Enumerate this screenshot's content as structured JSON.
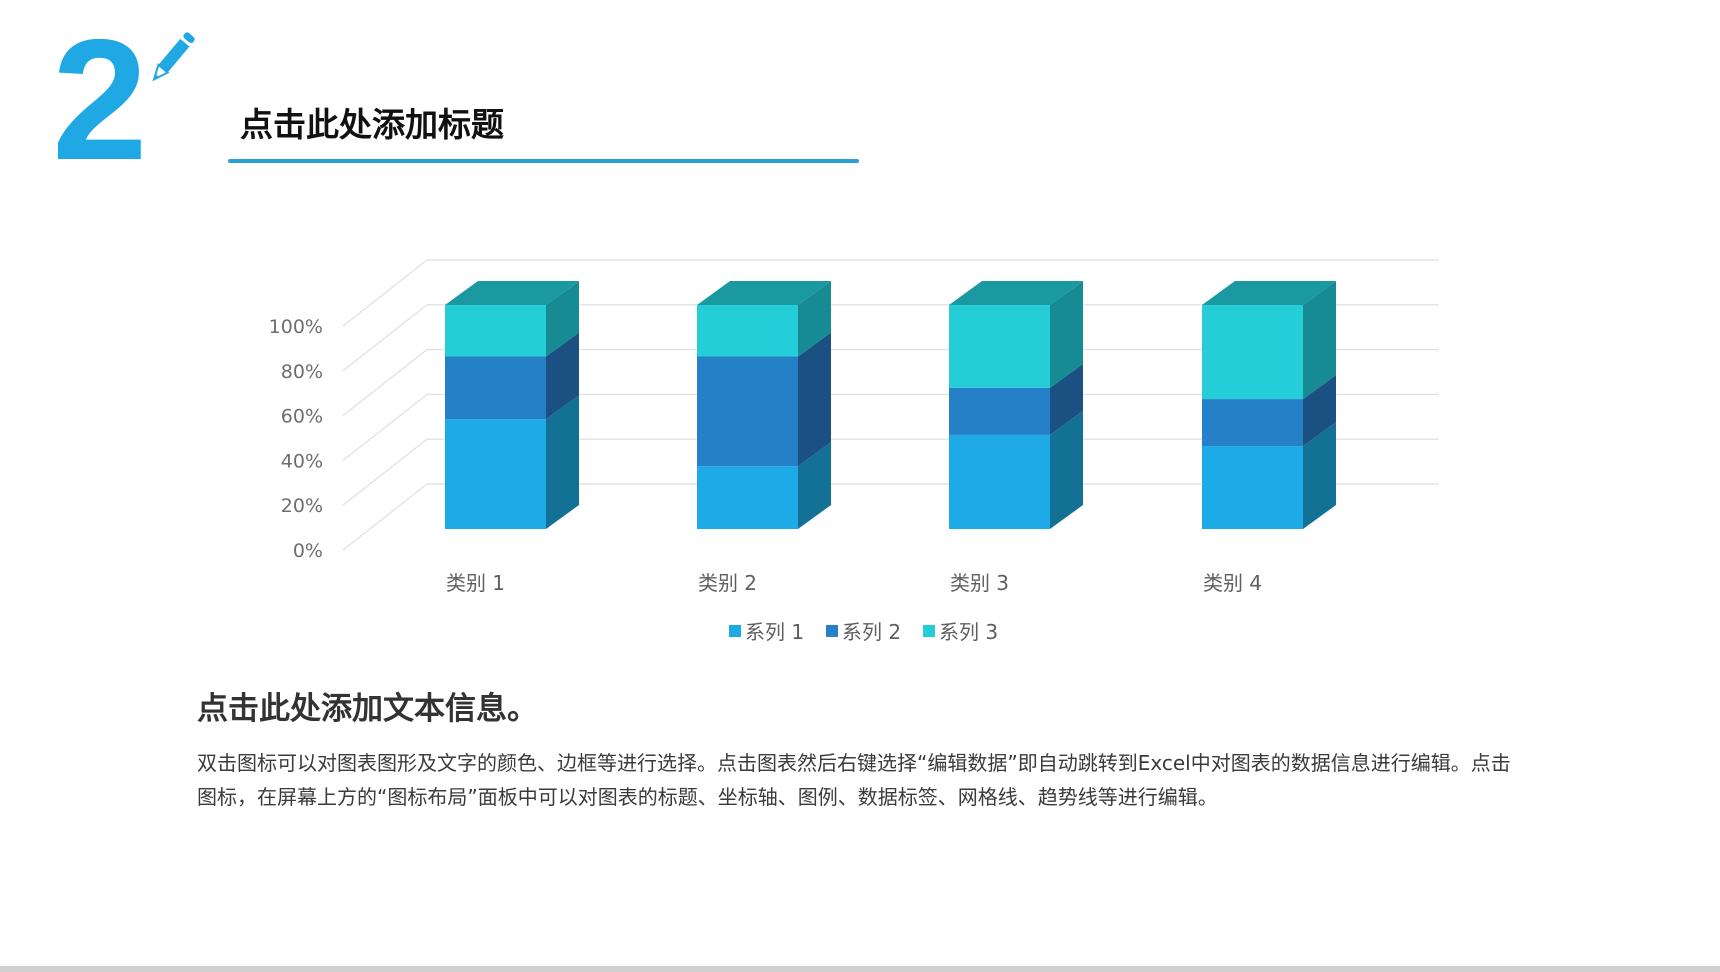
{
  "header": {
    "section_number": "2",
    "title": "点击此处添加标题"
  },
  "content": {
    "subtitle": "点击此处添加文本信息。",
    "body": "双击图标可以对图表图形及文字的颜色、边框等进行选择。点击图表然后右键选择“编辑数据”即自动跳转到Excel中对图表的数据信息进行编辑。点击图标，在屏幕上方的“图标布局”面板中可以对图表的标题、坐标轴、图例、数据标签、网格线、趋势线等进行编辑。"
  },
  "colors": {
    "accent": "#1fa8e4",
    "series_front": [
      "#1eaae7",
      "#2580c7",
      "#24cdd8"
    ],
    "series_side": [
      "#137195",
      "#1b5182",
      "#178b93"
    ],
    "top": "#1a9aa0",
    "grid": "#e3e3e3"
  },
  "chart_data": {
    "type": "bar",
    "subtype": "3d-stacked-100-percent-column",
    "categories": [
      "类别 1",
      "类别 2",
      "类别 3",
      "类别 4"
    ],
    "series": [
      {
        "name": "系列 1",
        "values": [
          49,
          28,
          42,
          37
        ]
      },
      {
        "name": "系列 2",
        "values": [
          28,
          49,
          21,
          21
        ]
      },
      {
        "name": "系列 3",
        "values": [
          23,
          23,
          37,
          42
        ]
      }
    ],
    "y_ticks": [
      "0%",
      "20%",
      "40%",
      "60%",
      "80%",
      "100%"
    ],
    "title": "",
    "xlabel": "",
    "ylabel": "",
    "ylim": [
      0,
      100
    ],
    "grid": true,
    "legend_position": "bottom"
  }
}
